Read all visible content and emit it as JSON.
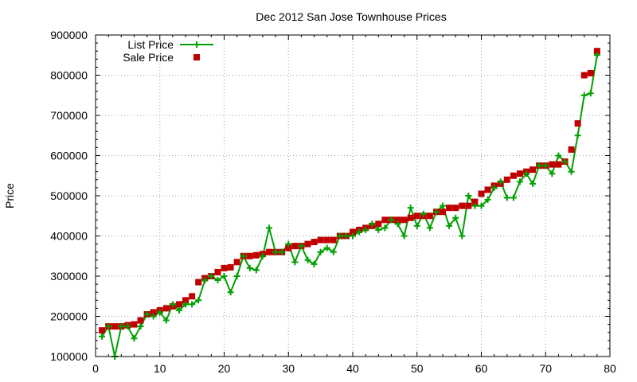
{
  "chart_data": {
    "type": "line",
    "title": "Dec 2012 San Jose Townhouse Prices",
    "xlabel": "",
    "ylabel": "Price",
    "xlim": [
      0,
      80
    ],
    "ylim": [
      100000,
      900000
    ],
    "xticks": [
      "0",
      "10",
      "20",
      "30",
      "40",
      "50",
      "60",
      "70",
      "80"
    ],
    "yticks": [
      "100000",
      "200000",
      "300000",
      "400000",
      "500000",
      "600000",
      "700000",
      "800000",
      "900000"
    ],
    "grid": true,
    "legend_position": "top-left",
    "series": [
      {
        "name": "List Price",
        "style": "line-plus",
        "color": "#00a000",
        "x": [
          1,
          2,
          3,
          4,
          5,
          6,
          7,
          8,
          9,
          10,
          11,
          12,
          13,
          14,
          15,
          16,
          17,
          18,
          19,
          20,
          21,
          22,
          23,
          24,
          25,
          26,
          27,
          28,
          29,
          30,
          31,
          32,
          33,
          34,
          35,
          36,
          37,
          38,
          39,
          40,
          41,
          42,
          43,
          44,
          45,
          46,
          47,
          48,
          49,
          50,
          51,
          52,
          53,
          54,
          55,
          56,
          57,
          58,
          59,
          60,
          61,
          62,
          63,
          64,
          65,
          66,
          67,
          68,
          69,
          70,
          71,
          72,
          73,
          74,
          75,
          76,
          77,
          78
        ],
        "values": [
          150000,
          175000,
          100000,
          175000,
          175000,
          145000,
          175000,
          205000,
          200000,
          210000,
          190000,
          230000,
          215000,
          230000,
          230000,
          240000,
          290000,
          300000,
          290000,
          300000,
          260000,
          300000,
          350000,
          320000,
          315000,
          350000,
          420000,
          360000,
          360000,
          380000,
          335000,
          375000,
          340000,
          330000,
          360000,
          370000,
          360000,
          400000,
          400000,
          400000,
          410000,
          415000,
          430000,
          415000,
          420000,
          440000,
          430000,
          400000,
          470000,
          425000,
          455000,
          420000,
          460000,
          475000,
          425000,
          445000,
          400000,
          500000,
          475000,
          475000,
          490000,
          520000,
          535000,
          495000,
          495000,
          535000,
          555000,
          530000,
          575000,
          575000,
          555000,
          600000,
          585000,
          560000,
          650000,
          750000,
          755000,
          850000
        ]
      },
      {
        "name": "Sale Price",
        "style": "square",
        "color": "#c00000",
        "x": [
          1,
          2,
          3,
          4,
          5,
          6,
          7,
          8,
          9,
          10,
          11,
          12,
          13,
          14,
          15,
          16,
          17,
          18,
          19,
          20,
          21,
          22,
          23,
          24,
          25,
          26,
          27,
          28,
          29,
          30,
          31,
          32,
          33,
          34,
          35,
          36,
          37,
          38,
          39,
          40,
          41,
          42,
          43,
          44,
          45,
          46,
          47,
          48,
          49,
          50,
          51,
          52,
          53,
          54,
          55,
          56,
          57,
          58,
          59,
          60,
          61,
          62,
          63,
          64,
          65,
          66,
          67,
          68,
          69,
          70,
          71,
          72,
          73,
          74,
          75,
          76,
          77,
          78
        ],
        "values": [
          165000,
          175000,
          175000,
          175000,
          178000,
          180000,
          190000,
          205000,
          210000,
          215000,
          220000,
          225000,
          230000,
          240000,
          250000,
          285000,
          295000,
          300000,
          310000,
          320000,
          322000,
          335000,
          350000,
          350000,
          352000,
          355000,
          360000,
          360000,
          360000,
          370000,
          375000,
          375000,
          380000,
          385000,
          390000,
          390000,
          390000,
          400000,
          400000,
          410000,
          415000,
          420000,
          425000,
          430000,
          440000,
          440000,
          440000,
          440000,
          445000,
          450000,
          450000,
          450000,
          460000,
          460000,
          470000,
          470000,
          475000,
          475000,
          485000,
          505000,
          515000,
          525000,
          530000,
          540000,
          550000,
          555000,
          560000,
          565000,
          575000,
          575000,
          578000,
          578000,
          585000,
          615000,
          680000,
          800000,
          805000,
          860000
        ]
      }
    ]
  }
}
